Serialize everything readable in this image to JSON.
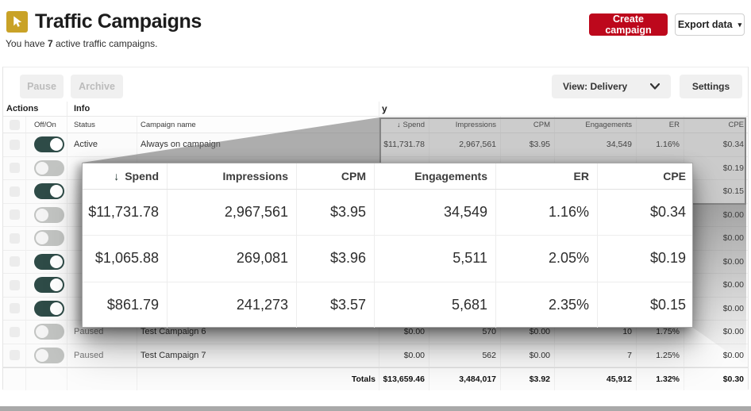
{
  "page": {
    "title": "Traffic Campaigns",
    "subtitle_prefix": "You have ",
    "subtitle_count": "7",
    "subtitle_suffix": " active traffic campaigns.",
    "create_button": "Create campaign",
    "export_button": "Export data"
  },
  "toolbar": {
    "pause": "Pause",
    "archive": "Archive",
    "view": "View: Delivery",
    "settings": "Settings"
  },
  "icons": {
    "sort_desc": "↓",
    "caret_down": "▾",
    "cursor_icon": "traffic-cursor"
  },
  "colors": {
    "accent_red": "#bd081c",
    "toggle_on_green": "#2e4b47",
    "icon_gold": "#c9a227"
  },
  "table": {
    "group_headers": {
      "actions": "Actions",
      "info": "Info",
      "delivery": "y"
    },
    "columns": {
      "toggle": "Off/On",
      "status": "Status",
      "name": "Campaign name",
      "spend": "Spend",
      "impressions": "Impressions",
      "cpm": "CPM",
      "engagements": "Engagements",
      "er": "ER",
      "cpe": "CPE"
    },
    "rows": [
      {
        "toggle_on": true,
        "status": "Active",
        "name": "Always on campaign",
        "spend": "$11,731.78",
        "impressions": "2,967,561",
        "cpm": "$3.95",
        "engagements": "34,549",
        "er": "1.16%",
        "cpe": "$0.34"
      },
      {
        "toggle_on": false,
        "status": "",
        "name": "",
        "spend": "$1,065.88",
        "impressions": "269,081",
        "cpm": "$3.96",
        "engagements": "5,511",
        "er": "2.05%",
        "cpe": "$0.19"
      },
      {
        "toggle_on": true,
        "status": "",
        "name": "",
        "spend": "$861.79",
        "impressions": "241,273",
        "cpm": "$3.57",
        "engagements": "5,681",
        "er": "2.35%",
        "cpe": "$0.15"
      },
      {
        "toggle_on": false,
        "status": "",
        "name": "",
        "spend": "",
        "impressions": "",
        "cpm": "",
        "engagements": "",
        "er": "",
        "cpe": "$0.00"
      },
      {
        "toggle_on": false,
        "status": "",
        "name": "",
        "spend": "",
        "impressions": "",
        "cpm": "",
        "engagements": "",
        "er": "",
        "cpe": "$0.00"
      },
      {
        "toggle_on": true,
        "status": "",
        "name": "",
        "spend": "",
        "impressions": "",
        "cpm": "",
        "engagements": "",
        "er": "",
        "cpe": "$0.00"
      },
      {
        "toggle_on": true,
        "status": "",
        "name": "",
        "spend": "",
        "impressions": "",
        "cpm": "",
        "engagements": "",
        "er": "",
        "cpe": "$0.00"
      },
      {
        "toggle_on": true,
        "status": "",
        "name": "",
        "spend": "",
        "impressions": "",
        "cpm": "",
        "engagements": "",
        "er": "",
        "cpe": "$0.00"
      },
      {
        "toggle_on": false,
        "status": "Paused",
        "name": "Test Campaign 6",
        "spend": "$0.00",
        "impressions": "570",
        "cpm": "$0.00",
        "engagements": "10",
        "er": "1.75%",
        "cpe": "$0.00"
      },
      {
        "toggle_on": false,
        "status": "Paused",
        "name": "Test Campaign 7",
        "spend": "$0.00",
        "impressions": "562",
        "cpm": "$0.00",
        "engagements": "7",
        "er": "1.25%",
        "cpe": "$0.00"
      }
    ],
    "totals": {
      "label": "Totals",
      "spend": "$13,659.46",
      "impressions": "3,484,017",
      "cpm": "$3.92",
      "engagements": "45,912",
      "er": "1.32%",
      "cpe": "$0.30"
    }
  },
  "lens": {
    "headers": [
      "Spend",
      "Impressions",
      "CPM",
      "Engagements",
      "ER",
      "CPE"
    ],
    "rows": [
      [
        "$11,731.78",
        "2,967,561",
        "$3.95",
        "34,549",
        "1.16%",
        "$0.34"
      ],
      [
        "$1,065.88",
        "269,081",
        "$3.96",
        "5,511",
        "2.05%",
        "$0.19"
      ],
      [
        "$861.79",
        "241,273",
        "$3.57",
        "5,681",
        "2.35%",
        "$0.15"
      ]
    ]
  }
}
